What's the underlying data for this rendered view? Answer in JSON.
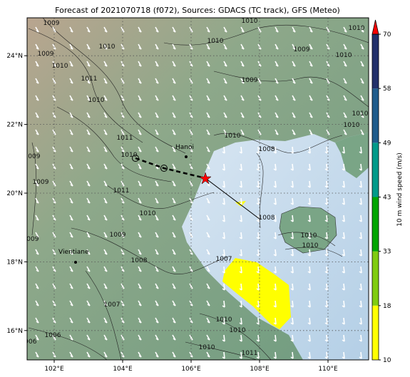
{
  "title": "Forecast of 2021070718 (f072), Sources: GDACS (TC track), GFS (Meteo)",
  "map": {
    "xticks": [
      {
        "value": 102,
        "label": "102°E"
      },
      {
        "value": 104,
        "label": "104°E"
      },
      {
        "value": 106,
        "label": "106°E"
      },
      {
        "value": 108,
        "label": "108°E"
      },
      {
        "value": 110,
        "label": "110°E"
      }
    ],
    "yticks": [
      {
        "value": 16,
        "label": "16°N"
      },
      {
        "value": 18,
        "label": "18°N"
      },
      {
        "value": 20,
        "label": "20°N"
      },
      {
        "value": 22,
        "label": "22°N"
      },
      {
        "value": 24,
        "label": "24°N"
      }
    ],
    "cities": [
      "Hanoi",
      "Vientiane"
    ],
    "isobar_labels": [
      "1009",
      "1010",
      "1010",
      "1010",
      "1010",
      "1009",
      "1010",
      "1009",
      "1010",
      "1009",
      "1011",
      "1010",
      "1010",
      "1010",
      "1010",
      "1011",
      "1010",
      "1008",
      "1009",
      "1009",
      "1011",
      "1010",
      "1009",
      "1009",
      "1008",
      "1008",
      "1010",
      "1010",
      "1007",
      "1007",
      "1006",
      "1010",
      "1010",
      "1010",
      "1011",
      "1006"
    ],
    "colorbar": {
      "ticks": [
        10,
        18,
        33,
        43,
        49,
        58,
        70
      ],
      "colors": [
        "#ffff00",
        "#80cc10",
        "#00a500",
        "#009a8a",
        "#1f5c8c",
        "#22306a"
      ],
      "extend_color": "#ff0000",
      "label": "10 m wind speed (m/s)"
    }
  }
}
